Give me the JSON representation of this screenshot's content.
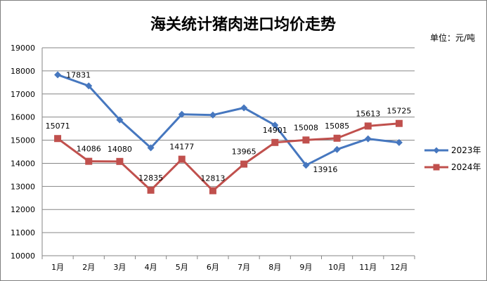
{
  "chart_data": {
    "type": "line",
    "title": "海关统计猪肉进口均价走势",
    "unit_label": "单位：元/吨",
    "categories": [
      "1月",
      "2月",
      "3月",
      "4月",
      "5月",
      "6月",
      "7月",
      "8月",
      "9月",
      "10月",
      "11月",
      "12月"
    ],
    "ylim": [
      10000,
      19000
    ],
    "yticks": [
      10000,
      11000,
      12000,
      13000,
      14000,
      15000,
      16000,
      17000,
      18000,
      19000
    ],
    "grid": true,
    "legend_position": "right",
    "series": [
      {
        "name": "2023年",
        "color": "#4677bf",
        "marker": "diamond",
        "values": [
          17831,
          17350,
          15880,
          14670,
          16120,
          16090,
          16400,
          15650,
          13916,
          14600,
          15060,
          14900
        ],
        "labels": [
          "17831",
          "",
          "",
          "",
          "",
          "",
          "",
          "",
          "13916",
          "",
          "",
          ""
        ]
      },
      {
        "name": "2024年",
        "color": "#c0504d",
        "marker": "square",
        "values": [
          15071,
          14086,
          14080,
          12835,
          14177,
          12813,
          13965,
          14901,
          15008,
          15085,
          15613,
          15725
        ],
        "labels": [
          "15071",
          "14086",
          "14080",
          "12835",
          "14177",
          "12813",
          "13965",
          "14901",
          "15008",
          "15085",
          "15613",
          "15725"
        ]
      }
    ]
  }
}
